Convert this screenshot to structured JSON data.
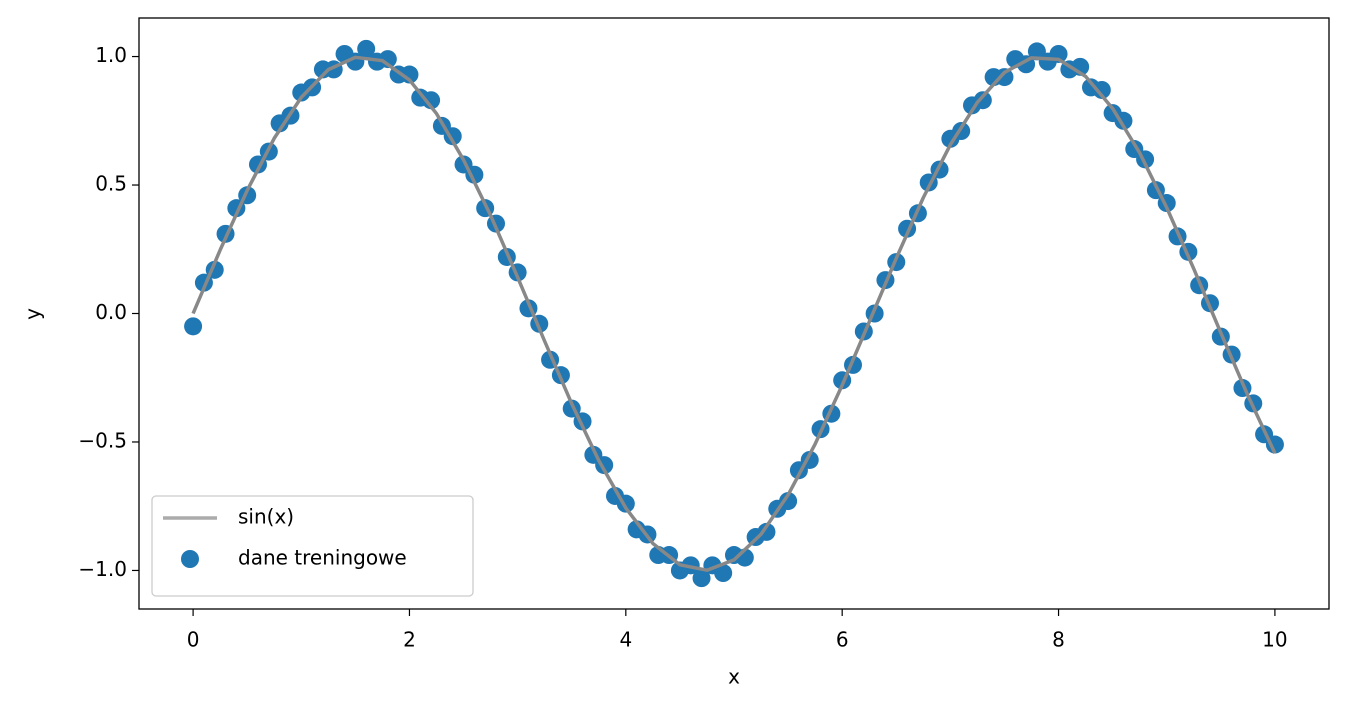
{
  "chart_data": {
    "type": "line",
    "x_label": "x",
    "y_label": "y",
    "xlim": [
      -0.5,
      10.5
    ],
    "ylim": [
      -1.15,
      1.15
    ],
    "xticks": [
      0,
      2,
      4,
      6,
      8,
      10
    ],
    "yticks": [
      {
        "value": -1.0,
        "label": "−1.0"
      },
      {
        "value": -0.5,
        "label": "−0.5"
      },
      {
        "value": 0.0,
        "label": "0.0"
      },
      0.5,
      {
        "value": 1.0,
        "label": "1.0"
      }
    ],
    "grid": false,
    "legend": "lower left",
    "series": [
      {
        "name": "sin(x)",
        "type": "line",
        "color": "#888888",
        "x": [
          0,
          0.25,
          0.5,
          0.75,
          1,
          1.25,
          1.5,
          1.75,
          2,
          2.25,
          2.5,
          2.75,
          3,
          3.25,
          3.5,
          3.75,
          4,
          4.25,
          4.5,
          4.75,
          5,
          5.25,
          5.5,
          5.75,
          6,
          6.25,
          6.5,
          6.75,
          7,
          7.25,
          7.5,
          7.75,
          8,
          8.25,
          8.5,
          8.75,
          9,
          9.25,
          9.5,
          9.75,
          10
        ],
        "values": [
          0,
          0.247,
          0.479,
          0.682,
          0.841,
          0.949,
          0.997,
          0.984,
          0.909,
          0.778,
          0.598,
          0.382,
          0.141,
          -0.108,
          -0.351,
          -0.572,
          -0.757,
          -0.895,
          -0.978,
          -0.999,
          -0.959,
          -0.859,
          -0.706,
          -0.508,
          -0.279,
          -0.033,
          0.215,
          0.451,
          0.657,
          0.822,
          0.938,
          0.995,
          0.989,
          0.923,
          0.798,
          0.625,
          0.412,
          0.174,
          -0.075,
          -0.319,
          -0.544
        ]
      },
      {
        "name": "dane treningowe",
        "type": "scatter",
        "color": "#1f77b4",
        "x": [
          0,
          0.1,
          0.2,
          0.3,
          0.4,
          0.5,
          0.6,
          0.7,
          0.8,
          0.9,
          1,
          1.1,
          1.2,
          1.3,
          1.4,
          1.5,
          1.6,
          1.7,
          1.8,
          1.9,
          2,
          2.1,
          2.2,
          2.3,
          2.4,
          2.5,
          2.6,
          2.7,
          2.8,
          2.9,
          3,
          3.1,
          3.2,
          3.3,
          3.4,
          3.5,
          3.6,
          3.7,
          3.8,
          3.9,
          4,
          4.1,
          4.2,
          4.3,
          4.4,
          4.5,
          4.6,
          4.7,
          4.8,
          4.9,
          5,
          5.1,
          5.2,
          5.3,
          5.4,
          5.5,
          5.6,
          5.7,
          5.8,
          5.9,
          6,
          6.1,
          6.2,
          6.3,
          6.4,
          6.5,
          6.6,
          6.7,
          6.8,
          6.9,
          7,
          7.1,
          7.2,
          7.3,
          7.4,
          7.5,
          7.6,
          7.7,
          7.8,
          7.9,
          8,
          8.1,
          8.2,
          8.3,
          8.4,
          8.5,
          8.6,
          8.7,
          8.8,
          8.9,
          9,
          9.1,
          9.2,
          9.3,
          9.4,
          9.5,
          9.6,
          9.7,
          9.8,
          9.9,
          10
        ],
        "values": [
          -0.05,
          0.12,
          0.17,
          0.31,
          0.41,
          0.46,
          0.58,
          0.63,
          0.74,
          0.77,
          0.86,
          0.88,
          0.95,
          0.95,
          1.01,
          0.98,
          1.03,
          0.98,
          0.99,
          0.93,
          0.93,
          0.84,
          0.83,
          0.73,
          0.69,
          0.58,
          0.54,
          0.41,
          0.35,
          0.22,
          0.16,
          0.02,
          -0.04,
          -0.18,
          -0.24,
          -0.37,
          -0.42,
          -0.55,
          -0.59,
          -0.71,
          -0.74,
          -0.84,
          -0.86,
          -0.94,
          -0.94,
          -1.0,
          -0.98,
          -1.03,
          -0.98,
          -1.01,
          -0.94,
          -0.95,
          -0.87,
          -0.85,
          -0.76,
          -0.73,
          -0.61,
          -0.57,
          -0.45,
          -0.39,
          -0.26,
          -0.2,
          -0.07,
          0.0,
          0.13,
          0.2,
          0.33,
          0.39,
          0.51,
          0.56,
          0.68,
          0.71,
          0.81,
          0.83,
          0.92,
          0.92,
          0.99,
          0.97,
          1.02,
          0.98,
          1.01,
          0.95,
          0.96,
          0.88,
          0.87,
          0.78,
          0.75,
          0.64,
          0.6,
          0.48,
          0.43,
          0.3,
          0.24,
          0.11,
          0.04,
          -0.09,
          -0.16,
          -0.29,
          -0.35,
          -0.47,
          -0.51
        ]
      }
    ]
  }
}
